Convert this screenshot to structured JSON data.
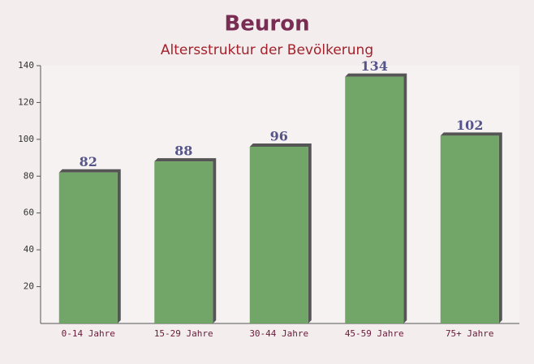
{
  "chart_data": {
    "type": "bar",
    "title": "Beuron",
    "subtitle": "Altersstruktur der Bevölkerung",
    "categories": [
      "0-14 Jahre",
      "15-29 Jahre",
      "30-44 Jahre",
      "45-59 Jahre",
      "75+ Jahre"
    ],
    "values": [
      82,
      88,
      96,
      134,
      102
    ],
    "color": "#6aa060",
    "ylim": [
      0,
      140
    ],
    "yticks": [
      20,
      40,
      60,
      80,
      100,
      120,
      140
    ],
    "grid": false
  }
}
